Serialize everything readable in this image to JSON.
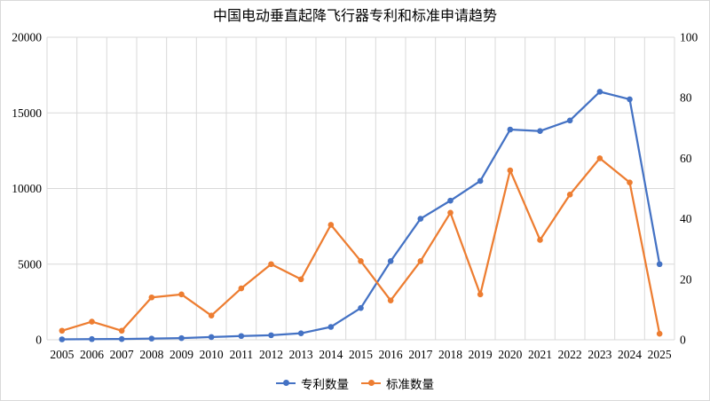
{
  "chart_data": {
    "type": "line",
    "title": "中国电动垂直起降飞行器专利和标准申请趋势",
    "categories": [
      "2005",
      "2006",
      "2007",
      "2008",
      "2009",
      "2010",
      "2011",
      "2012",
      "2013",
      "2014",
      "2015",
      "2016",
      "2017",
      "2018",
      "2019",
      "2020",
      "2021",
      "2022",
      "2023",
      "2024",
      "2025"
    ],
    "series": [
      {
        "name": "专利数量",
        "axis": "left",
        "color": "#4472C4",
        "marker": "circle",
        "values": [
          30,
          45,
          50,
          80,
          110,
          180,
          250,
          300,
          430,
          850,
          2100,
          5200,
          8000,
          9200,
          10500,
          13900,
          13800,
          14500,
          16400,
          15900,
          5000
        ]
      },
      {
        "name": "标准数量",
        "axis": "right",
        "color": "#ED7D31",
        "marker": "circle",
        "values": [
          3,
          6,
          3,
          14,
          15,
          8,
          17,
          25,
          20,
          38,
          26,
          13,
          26,
          42,
          15,
          56,
          33,
          48,
          60,
          52,
          2
        ]
      }
    ],
    "left_axis": {
      "min": 0,
      "max": 20000,
      "ticks": [
        0,
        5000,
        10000,
        15000,
        20000
      ]
    },
    "right_axis": {
      "min": 0,
      "max": 100,
      "ticks": [
        0,
        20,
        40,
        60,
        80,
        100
      ]
    },
    "grid": true,
    "legend_position": "bottom"
  },
  "colors": {
    "grid": "#D9D9D9",
    "axis_text": "#000000",
    "background": "#FFFFFF",
    "border": "#D9D9D9"
  }
}
